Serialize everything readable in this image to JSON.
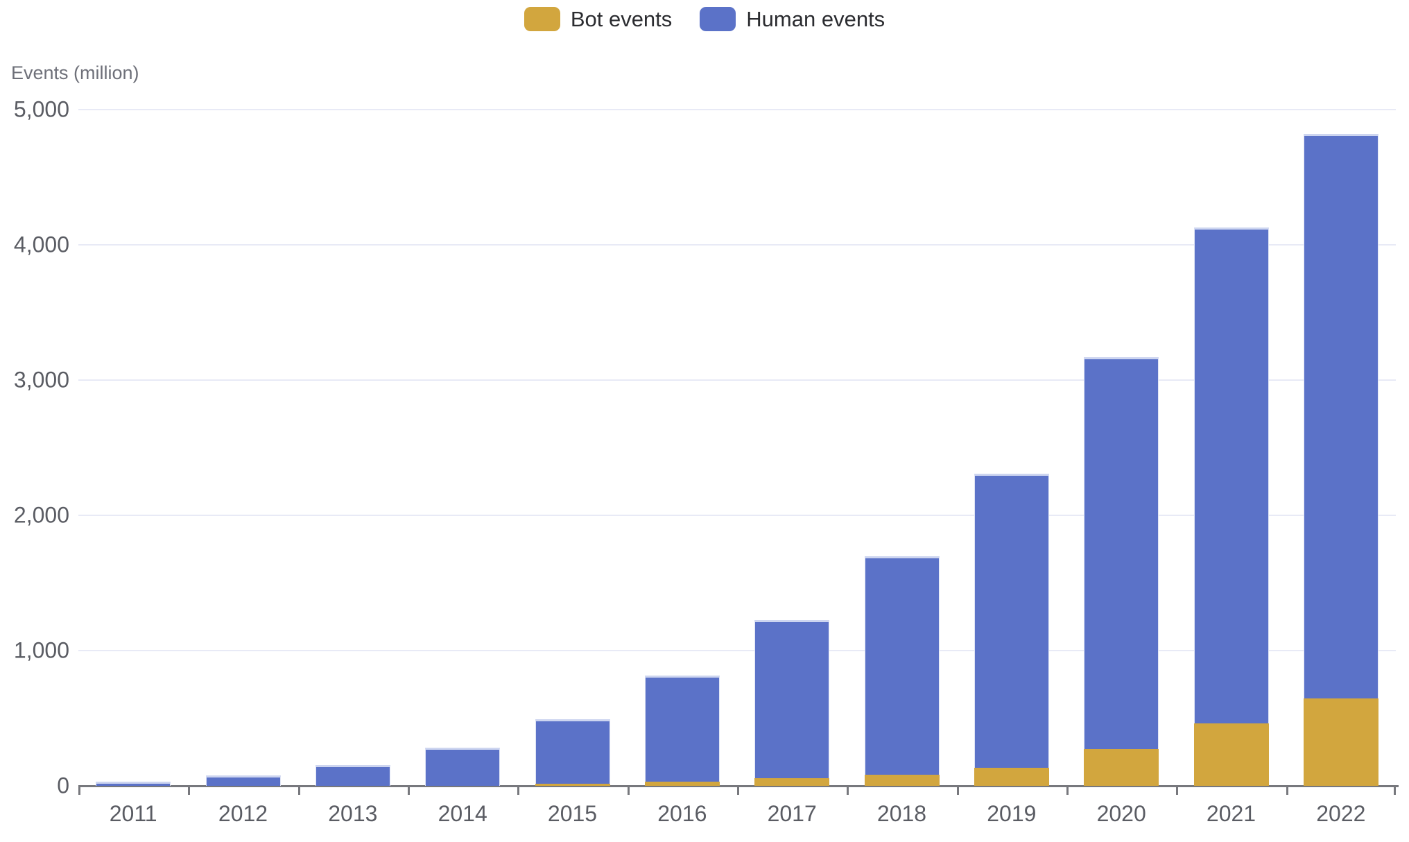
{
  "legend": {
    "items": [
      {
        "label": "Bot events",
        "color": "#D2A63E"
      },
      {
        "label": "Human events",
        "color": "#5B72C8"
      }
    ]
  },
  "axis_title": "Events (million)",
  "chart_data": {
    "type": "bar",
    "stacked": true,
    "title": "",
    "ylabel": "Events (million)",
    "xlabel": "",
    "categories": [
      "2011",
      "2012",
      "2013",
      "2014",
      "2015",
      "2016",
      "2017",
      "2018",
      "2019",
      "2020",
      "2021",
      "2022"
    ],
    "series": [
      {
        "name": "Bot events",
        "color": "#D2A63E",
        "values": [
          0,
          0,
          0,
          0,
          15,
          30,
          55,
          80,
          135,
          270,
          460,
          645
        ]
      },
      {
        "name": "Human events",
        "color": "#5B72C8",
        "values": [
          30,
          75,
          155,
          280,
          475,
          785,
          1170,
          1620,
          2175,
          2900,
          3670,
          4175
        ]
      }
    ],
    "totals": [
      30,
      75,
      155,
      280,
      490,
      815,
      1225,
      1700,
      2310,
      3170,
      4130,
      4820
    ],
    "ylim": [
      0,
      5000
    ],
    "yticks": [
      0,
      1000,
      2000,
      3000,
      4000,
      5000
    ],
    "ytick_labels": [
      "0",
      "1,000",
      "2,000",
      "3,000",
      "4,000",
      "5,000"
    ],
    "grid": true,
    "legend_position": "top-center"
  },
  "style": {
    "grid_color": "#E8EAF6",
    "axis_color": "#77787D",
    "tick_label_color": "#5A5C63",
    "axis_title_color": "#6E7079",
    "legend_text_color": "#2B2C30",
    "background": "#FFFFFF"
  }
}
